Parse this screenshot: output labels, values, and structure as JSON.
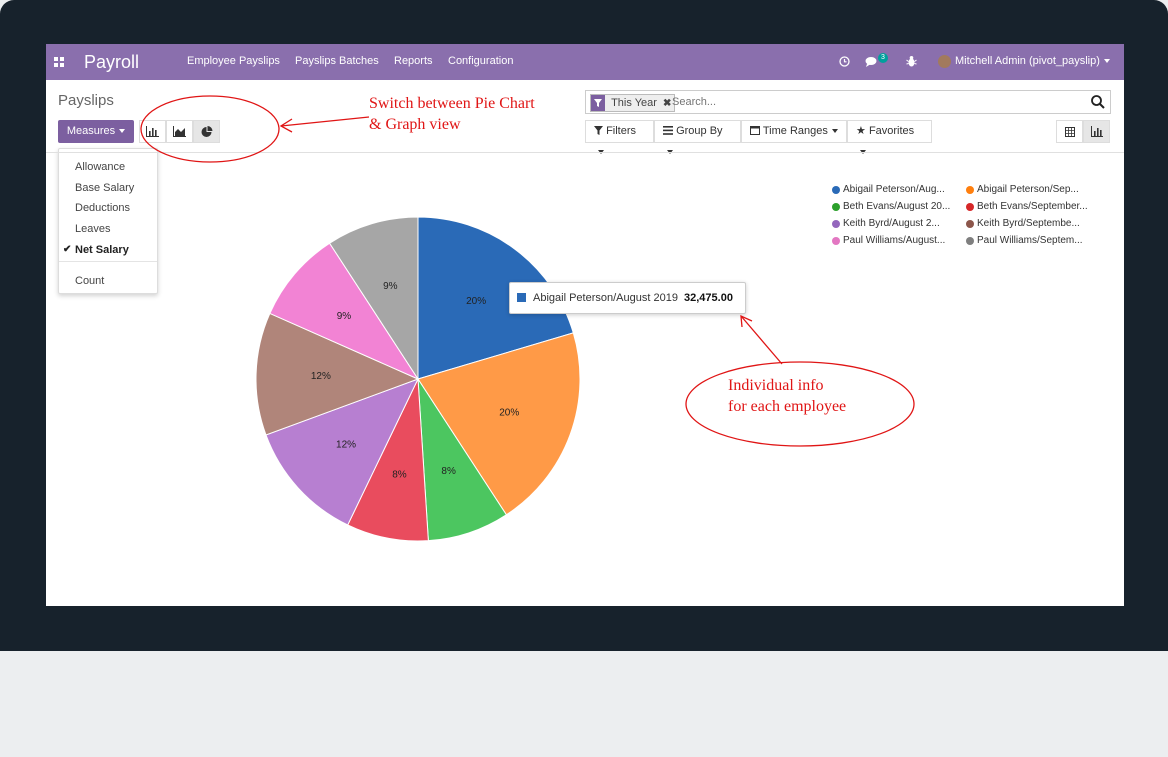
{
  "app": {
    "title": "Payroll"
  },
  "nav": {
    "menu": [
      "Employee Payslips",
      "Payslips Batches",
      "Reports",
      "Configuration"
    ],
    "message_count": "3",
    "user": "Mitchell Admin (pivot_payslip)"
  },
  "breadcrumb": "Payslips",
  "toolbar": {
    "measures_label": "Measures"
  },
  "measures": {
    "items": [
      {
        "label": "Allowance",
        "selected": false
      },
      {
        "label": "Base Salary",
        "selected": false
      },
      {
        "label": "Deductions",
        "selected": false
      },
      {
        "label": "Leaves",
        "selected": false
      },
      {
        "label": "Net Salary",
        "selected": true
      }
    ],
    "count_label": "Count"
  },
  "search": {
    "facet_label": "This Year",
    "placeholder": "Search..."
  },
  "filters": {
    "filters_label": "Filters",
    "group_by_label": "Group By",
    "time_ranges_label": "Time Ranges",
    "favorites_label": "Favorites"
  },
  "tooltip": {
    "name": "Abigail Peterson/August 2019",
    "value": "32,475.00"
  },
  "annotations": {
    "switch_line1": "Switch between Pie Chart",
    "switch_line2": "& Graph view",
    "info_line1": "Individual info",
    "info_line2": "for each employee",
    "color": "#e01515"
  },
  "colors": {
    "navbar": "#8a6fad",
    "primary": "#7c5fa0"
  },
  "chart_data": {
    "type": "pie",
    "slices": [
      {
        "label": "Abigail Peterson/Aug...",
        "percent": 20,
        "color": "#2a6ab7"
      },
      {
        "label": "Abigail Peterson/Sep...",
        "percent": 20,
        "color": "#ff9a47"
      },
      {
        "label": "Beth Evans/August 20...",
        "percent": 8,
        "color": "#4cc660"
      },
      {
        "label": "Beth Evans/September...",
        "percent": 8,
        "color": "#e94c5e"
      },
      {
        "label": "Keith Byrd/August 2...",
        "percent": 12,
        "color": "#b77fd1"
      },
      {
        "label": "Keith Byrd/Septembe...",
        "percent": 12,
        "color": "#b0857a"
      },
      {
        "label": "Paul Williams/August...",
        "percent": 9,
        "color": "#f283d4"
      },
      {
        "label": "Paul Williams/Septem...",
        "percent": 9,
        "color": "#a6a6a6"
      }
    ],
    "legend_placement": "top-right",
    "legend": [
      {
        "label": "Abigail Peterson/Aug...",
        "color": "#2a6ab7"
      },
      {
        "label": "Abigail Peterson/Sep...",
        "color": "#ff7f0e"
      },
      {
        "label": "Beth Evans/August 20...",
        "color": "#2ca02c"
      },
      {
        "label": "Beth Evans/September...",
        "color": "#d62728"
      },
      {
        "label": "Keith Byrd/August 2...",
        "color": "#9467bd"
      },
      {
        "label": "Keith Byrd/Septembe...",
        "color": "#8c564b"
      },
      {
        "label": "Paul Williams/August...",
        "color": "#e377c2"
      },
      {
        "label": "Paul Williams/Septem...",
        "color": "#7f7f7f"
      }
    ]
  }
}
